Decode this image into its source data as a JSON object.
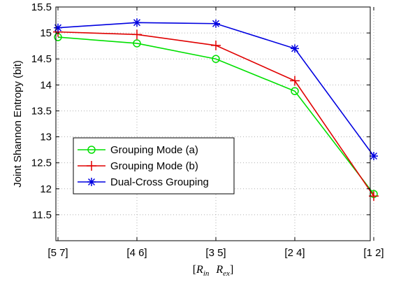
{
  "chart_data": {
    "type": "line",
    "categories": [
      "[5 7]",
      "[4 6]",
      "[3 5]",
      "[2 4]",
      "[1 2]"
    ],
    "ylabel": "Joint Shannon Entropy (bit)",
    "xlabel": {
      "open": "[",
      "r1": "R",
      "sub1": "in",
      "r2": "R",
      "sub2": "ex",
      "close": "]"
    },
    "ylim": [
      11,
      15.5
    ],
    "yticks": [
      "11.5",
      "12",
      "12.5",
      "13",
      "13.5",
      "14",
      "14.5",
      "15",
      "15.5"
    ],
    "grid": true,
    "legend_position": "lower-left",
    "series": [
      {
        "name": "Grouping Mode (a)",
        "color": "#00e000",
        "marker": "circle",
        "values": [
          14.92,
          14.8,
          14.5,
          13.88,
          11.9
        ]
      },
      {
        "name": "Grouping Mode (b)",
        "color": "#e00000",
        "marker": "plus",
        "values": [
          15.02,
          14.97,
          14.76,
          14.08,
          11.86
        ]
      },
      {
        "name": "Dual-Cross Grouping",
        "color": "#0000e0",
        "marker": "star",
        "values": [
          15.1,
          15.2,
          15.18,
          14.7,
          12.63
        ]
      }
    ]
  }
}
